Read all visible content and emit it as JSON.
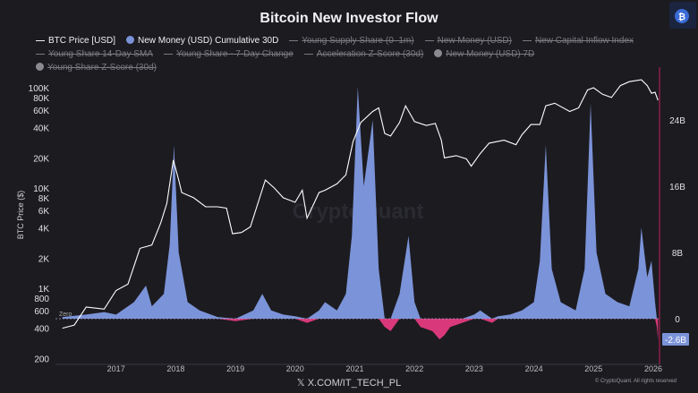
{
  "title": "Bitcoin New Investor Flow",
  "watermark": "CryptoQuant",
  "footer": {
    "social": "X.COM/IT_TECH_PL",
    "copyright": "© CryptoQuant. All rights reserved"
  },
  "colors": {
    "background": "#1c1b20",
    "price": "#ffffff",
    "positive": "#7b93d8",
    "negative": "#d9387a",
    "right_axis": "#8a1f48"
  },
  "legend": [
    {
      "label": "BTC Price [USD]",
      "marker": "line",
      "enabled": true,
      "color": "#ffffff"
    },
    {
      "label": "New Money (USD) Cumulative 30D",
      "marker": "dot",
      "enabled": true,
      "color": "#7b93d8"
    },
    {
      "label": "Young Supply Share (0–1m)",
      "marker": "line",
      "enabled": false
    },
    {
      "label": "New Money (USD)",
      "marker": "line",
      "enabled": false
    },
    {
      "label": "New Capital Inflow Index",
      "marker": "line",
      "enabled": false
    },
    {
      "label": "Young Share 14-Day SMA",
      "marker": "line",
      "enabled": false
    },
    {
      "label": "Young Share - 7-Day Change",
      "marker": "line",
      "enabled": false
    },
    {
      "label": "Acceleration Z-Score (30d)",
      "marker": "line",
      "enabled": false
    },
    {
      "label": "New Money (USD) 7D",
      "marker": "dot",
      "enabled": false
    },
    {
      "label": "Young Share Z-Score (30d)",
      "marker": "dot",
      "enabled": false
    }
  ],
  "chart_data": {
    "type": "line",
    "title": "Bitcoin New Investor Flow",
    "x_ticks": [
      "2017",
      "2018",
      "2019",
      "2020",
      "2021",
      "2022",
      "2023",
      "2024",
      "2025",
      "2026"
    ],
    "x_range": [
      2016.0,
      2026.1
    ],
    "left_axis": {
      "label": "BTC Price ($)",
      "scale": "log",
      "range": [
        200,
        130000
      ],
      "ticks": [
        {
          "v": 100000,
          "t": "100K"
        },
        {
          "v": 80000,
          "t": "80K"
        },
        {
          "v": 60000,
          "t": "60K"
        },
        {
          "v": 40000,
          "t": "40K"
        },
        {
          "v": 20000,
          "t": "20K"
        },
        {
          "v": 10000,
          "t": "10K"
        },
        {
          "v": 8000,
          "t": "8K"
        },
        {
          "v": 6000,
          "t": "6K"
        },
        {
          "v": 4000,
          "t": "4K"
        },
        {
          "v": 2000,
          "t": "2K"
        },
        {
          "v": 1000,
          "t": "1K"
        },
        {
          "v": 800,
          "t": "800"
        },
        {
          "v": 600,
          "t": "600"
        },
        {
          "v": 400,
          "t": "400"
        },
        {
          "v": 200,
          "t": "200"
        }
      ]
    },
    "right_axis": {
      "range_billions": [
        -5,
        30
      ],
      "ticks": [
        {
          "v": 24,
          "t": "24B"
        },
        {
          "v": 16,
          "t": "16B"
        },
        {
          "v": 8,
          "t": "8B"
        },
        {
          "v": 0,
          "t": "0"
        }
      ],
      "last_value_label": "-2.6B",
      "zero_label": "Zero"
    },
    "series": [
      {
        "name": "BTC Price [USD]",
        "axis": "left",
        "x": [
          2016.1,
          2016.3,
          2016.5,
          2016.8,
          2017.0,
          2017.2,
          2017.4,
          2017.6,
          2017.75,
          2017.85,
          2017.96,
          2018.05,
          2018.1,
          2018.3,
          2018.5,
          2018.7,
          2018.85,
          2018.95,
          2019.1,
          2019.25,
          2019.5,
          2019.65,
          2019.8,
          2020.0,
          2020.12,
          2020.2,
          2020.4,
          2020.5,
          2020.7,
          2020.85,
          2020.97,
          2021.1,
          2021.3,
          2021.4,
          2021.5,
          2021.6,
          2021.75,
          2021.85,
          2022.0,
          2022.2,
          2022.35,
          2022.45,
          2022.5,
          2022.7,
          2022.87,
          2022.95,
          2023.1,
          2023.25,
          2023.5,
          2023.7,
          2023.8,
          2023.95,
          2024.1,
          2024.2,
          2024.35,
          2024.6,
          2024.75,
          2024.9,
          2025.0,
          2025.15,
          2025.3,
          2025.45,
          2025.6,
          2025.8,
          2025.9,
          2025.97,
          2026.03,
          2026.08
        ],
        "values": [
          400,
          430,
          650,
          620,
          950,
          1100,
          2500,
          2700,
          4500,
          7000,
          19000,
          12000,
          9000,
          8000,
          6500,
          6500,
          6300,
          3500,
          3600,
          4100,
          12000,
          10000,
          8000,
          7200,
          9500,
          5000,
          9000,
          9500,
          11000,
          13500,
          29000,
          45000,
          58000,
          63000,
          35000,
          33000,
          45000,
          66000,
          46000,
          42000,
          44000,
          30000,
          20000,
          21000,
          19500,
          16500,
          22000,
          28000,
          30000,
          27000,
          34000,
          43000,
          43000,
          66000,
          70000,
          58000,
          63000,
          95000,
          100000,
          86000,
          80000,
          105000,
          115000,
          120000,
          105000,
          88000,
          90000,
          75000
        ]
      },
      {
        "name": "New Money (USD) Cumulative 30D",
        "axis": "right",
        "unit": "B",
        "x": [
          2016.1,
          2016.5,
          2016.8,
          2017.0,
          2017.3,
          2017.5,
          2017.6,
          2017.8,
          2017.9,
          2017.97,
          2018.05,
          2018.2,
          2018.4,
          2018.7,
          2019.0,
          2019.3,
          2019.45,
          2019.6,
          2019.8,
          2020.0,
          2020.2,
          2020.4,
          2020.5,
          2020.7,
          2020.85,
          2020.95,
          2021.05,
          2021.15,
          2021.3,
          2021.4,
          2021.5,
          2021.6,
          2021.75,
          2021.9,
          2022.0,
          2022.1,
          2022.3,
          2022.42,
          2022.5,
          2022.6,
          2022.8,
          2023.0,
          2023.1,
          2023.3,
          2023.4,
          2023.6,
          2023.8,
          2024.0,
          2024.1,
          2024.2,
          2024.3,
          2024.45,
          2024.7,
          2024.85,
          2024.95,
          2025.05,
          2025.2,
          2025.4,
          2025.6,
          2025.75,
          2025.8,
          2025.9,
          2025.97,
          2026.03,
          2026.06,
          2026.08
        ],
        "values": [
          0.2,
          0.5,
          0.8,
          0.5,
          2,
          4,
          1.5,
          3,
          9,
          21,
          8,
          2,
          1,
          0.2,
          -0.3,
          1,
          3,
          1,
          0.5,
          0.3,
          -0.5,
          1,
          2,
          1,
          3,
          10,
          28,
          16,
          24,
          6,
          -1,
          -1.5,
          3,
          10,
          2,
          -1,
          -1.5,
          -2.5,
          -2,
          -1,
          -0.5,
          0.5,
          1,
          -0.5,
          0.3,
          0.5,
          1,
          2,
          7,
          21,
          6,
          2,
          1,
          6,
          26,
          8,
          3,
          2,
          1.5,
          6,
          11,
          5,
          7,
          2,
          -1,
          -2.6
        ]
      }
    ]
  }
}
